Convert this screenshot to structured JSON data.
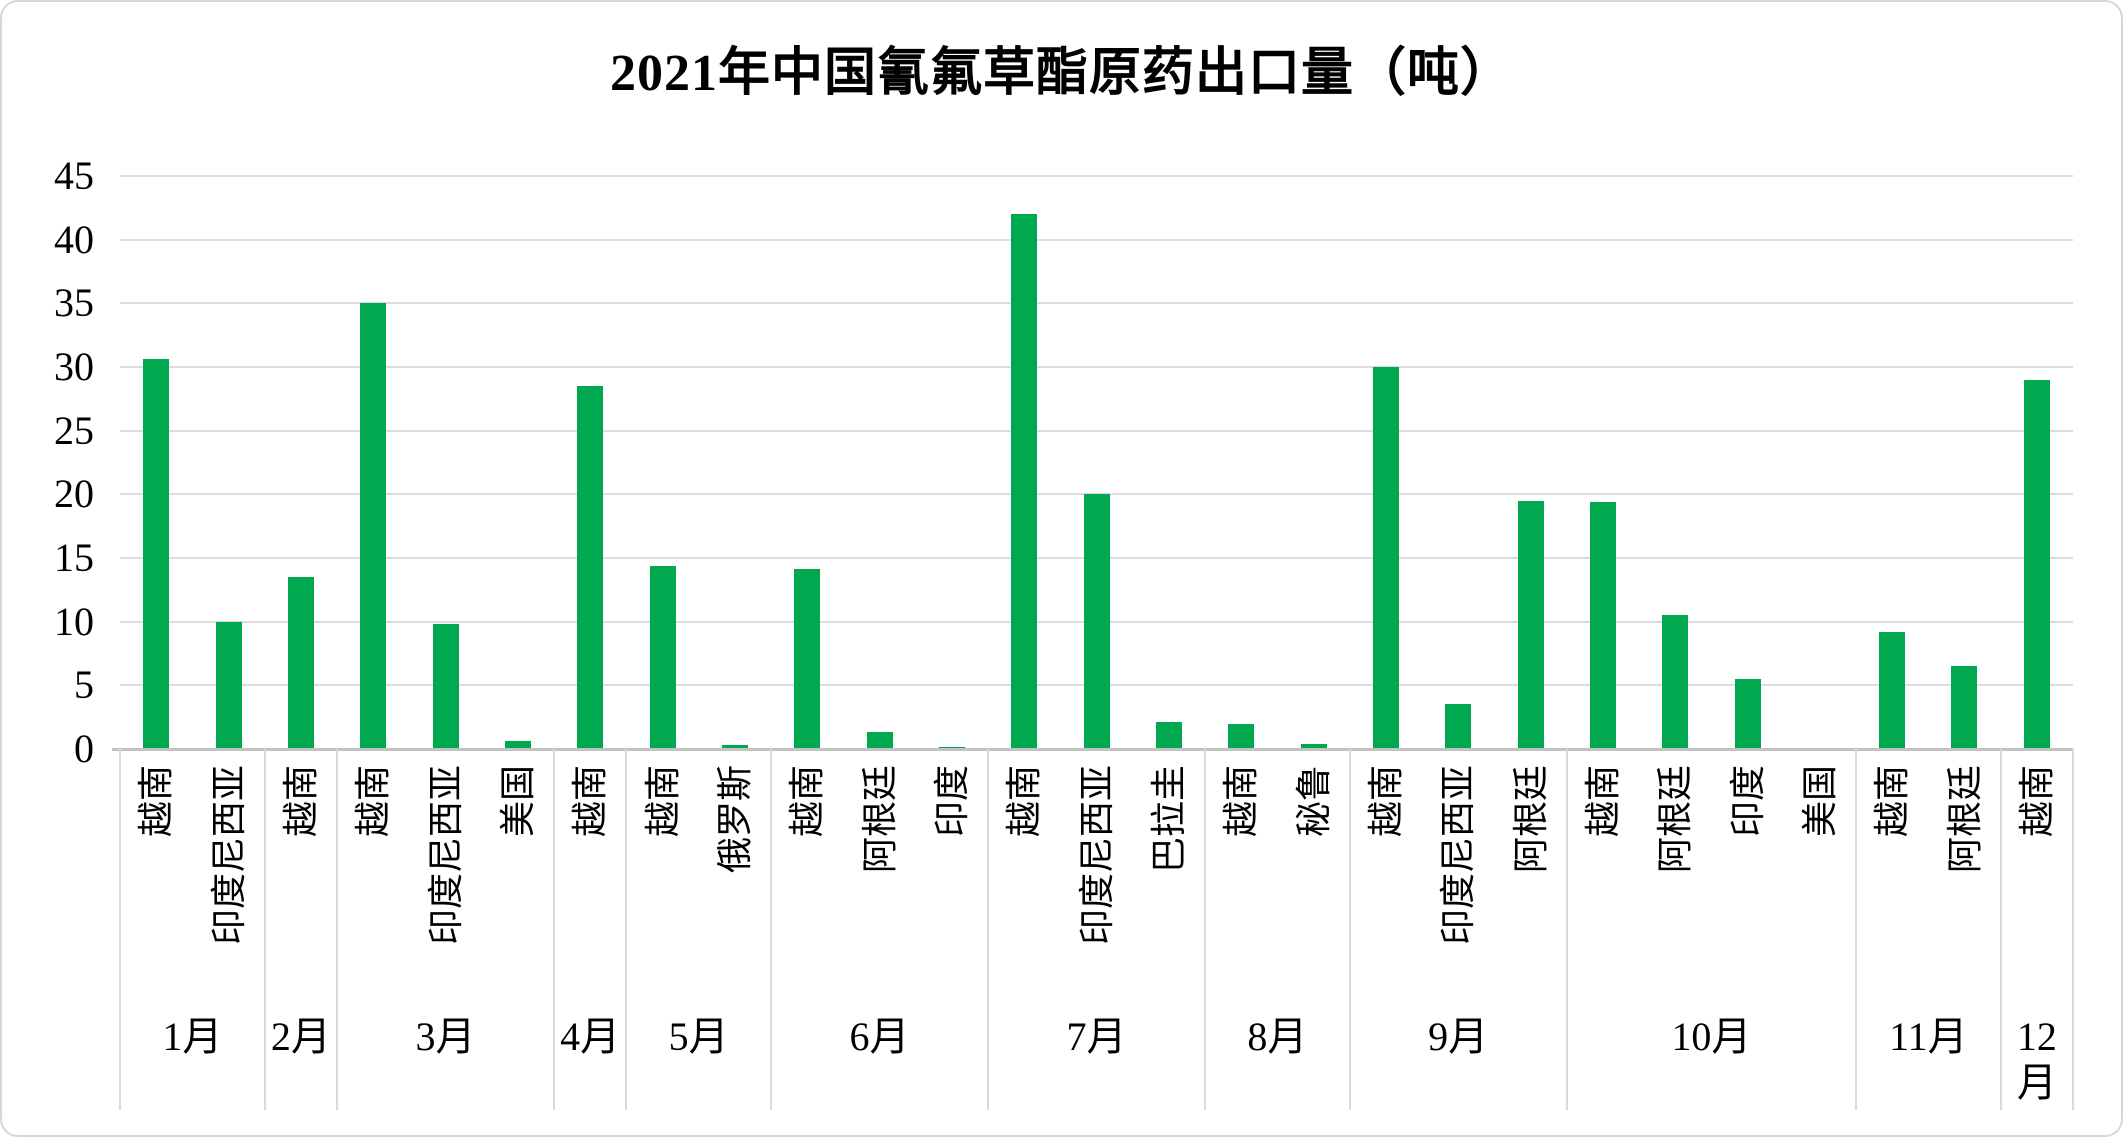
{
  "title": "2021年中国氰氟草酯原药出口量（吨）",
  "chart_data": {
    "type": "bar",
    "title": "2021年中国氰氟草酯原药出口量（吨）",
    "unit": "吨",
    "bar_color": "#00a950",
    "gridline_color": "#dcdcdc",
    "axis_color": "#c3c3c3",
    "ylim": [
      0,
      45
    ],
    "yticks": [
      0,
      5,
      10,
      15,
      20,
      25,
      30,
      35,
      40,
      45
    ],
    "grid": true,
    "legend_position": "none",
    "xlabel": "",
    "ylabel": "",
    "groups": [
      {
        "month": "1月",
        "items": [
          {
            "country": "越南",
            "value": 30.6
          },
          {
            "country": "印度尼西亚",
            "value": 10.0
          }
        ]
      },
      {
        "month": "2月",
        "items": [
          {
            "country": "越南",
            "value": 13.5
          }
        ]
      },
      {
        "month": "3月",
        "items": [
          {
            "country": "越南",
            "value": 35.0
          },
          {
            "country": "印度尼西亚",
            "value": 9.8
          },
          {
            "country": "美国",
            "value": 0.6
          }
        ]
      },
      {
        "month": "4月",
        "items": [
          {
            "country": "越南",
            "value": 28.5
          }
        ]
      },
      {
        "month": "5月",
        "items": [
          {
            "country": "越南",
            "value": 14.4
          },
          {
            "country": "俄罗斯",
            "value": 0.3
          }
        ]
      },
      {
        "month": "6月",
        "items": [
          {
            "country": "越南",
            "value": 14.1
          },
          {
            "country": "阿根廷",
            "value": 1.3
          },
          {
            "country": "印度",
            "value": 0.15
          }
        ]
      },
      {
        "month": "7月",
        "items": [
          {
            "country": "越南",
            "value": 42.0
          },
          {
            "country": "印度尼西亚",
            "value": 20.0
          },
          {
            "country": "巴拉圭",
            "value": 2.1
          }
        ]
      },
      {
        "month": "8月",
        "items": [
          {
            "country": "越南",
            "value": 2.0
          },
          {
            "country": "秘鲁",
            "value": 0.4
          }
        ]
      },
      {
        "month": "9月",
        "items": [
          {
            "country": "越南",
            "value": 30.0
          },
          {
            "country": "印度尼西亚",
            "value": 3.5
          },
          {
            "country": "阿根廷",
            "value": 19.5
          }
        ]
      },
      {
        "month": "10月",
        "items": [
          {
            "country": "越南",
            "value": 19.4
          },
          {
            "country": "阿根廷",
            "value": 10.5
          },
          {
            "country": "印度",
            "value": 5.5
          },
          {
            "country": "美国",
            "value": 0.1
          }
        ]
      },
      {
        "month": "11月",
        "items": [
          {
            "country": "越南",
            "value": 9.2
          },
          {
            "country": "阿根廷",
            "value": 6.5
          }
        ]
      },
      {
        "month": "12月",
        "items": [
          {
            "country": "越南",
            "value": 29.0
          }
        ]
      }
    ]
  }
}
